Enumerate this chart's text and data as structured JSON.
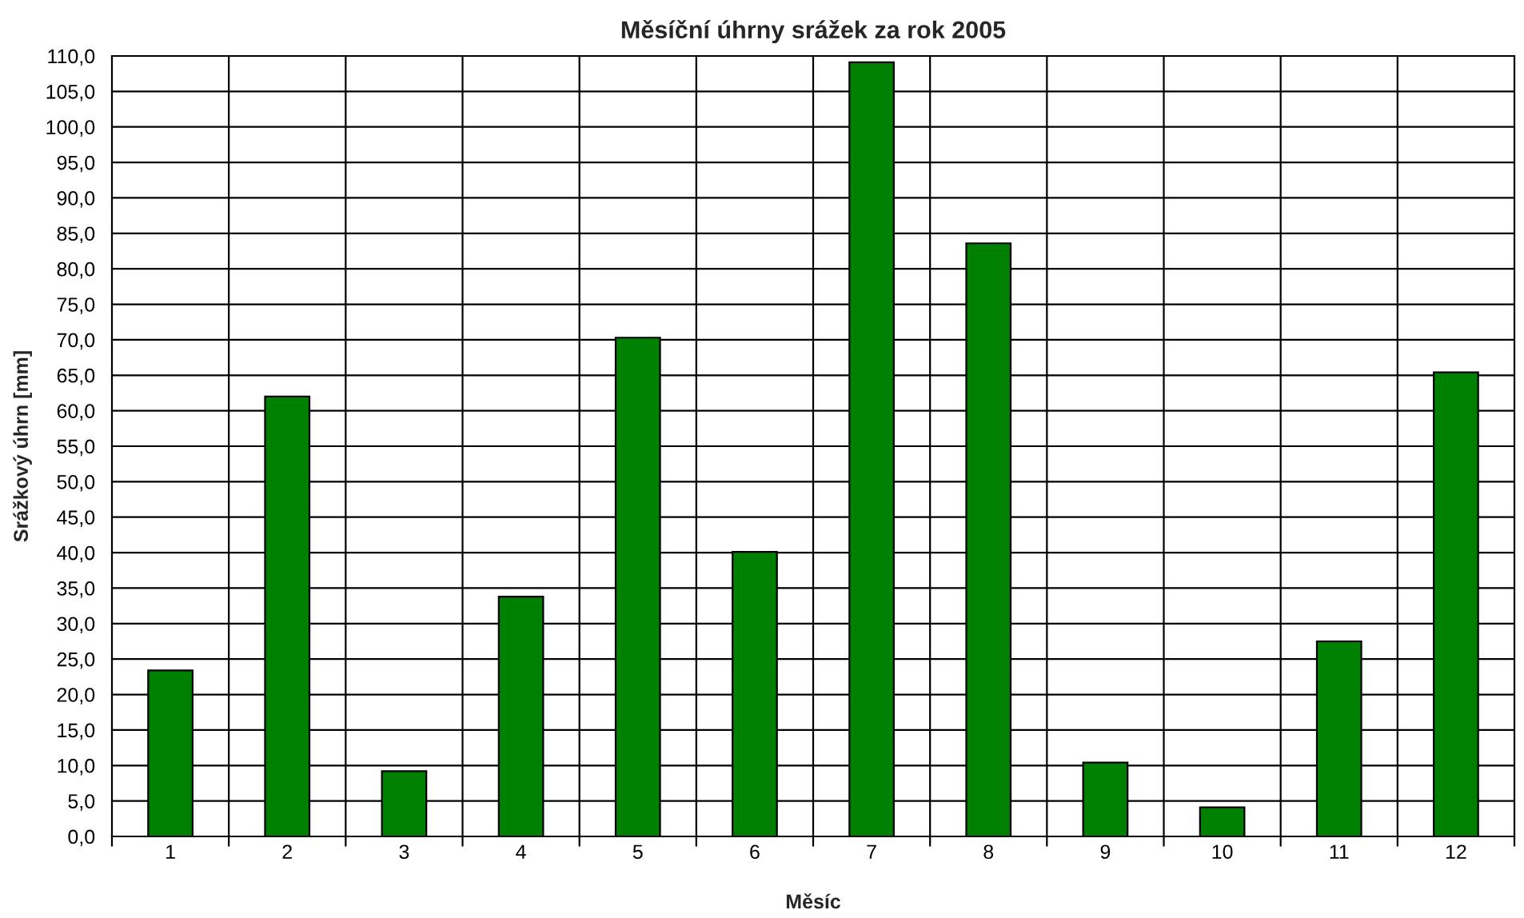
{
  "chart_data": {
    "type": "bar",
    "title": "Měsíční úhrny srážek za rok 2005",
    "xlabel": "Měsíc",
    "ylabel": "Srážkový úhrn [mm]",
    "categories": [
      "1",
      "2",
      "3",
      "4",
      "5",
      "6",
      "7",
      "8",
      "9",
      "10",
      "11",
      "12"
    ],
    "values": [
      23.4,
      62.0,
      9.2,
      33.8,
      70.3,
      40.1,
      109.1,
      83.6,
      10.4,
      4.1,
      27.5,
      65.4
    ],
    "color": "#008000",
    "ylim": [
      0,
      110
    ],
    "yticks": [
      {
        "value": 0,
        "label": "0,0"
      },
      {
        "value": 5,
        "label": "5,0"
      },
      {
        "value": 10,
        "label": "10,0"
      },
      {
        "value": 15,
        "label": "15,0"
      },
      {
        "value": 20,
        "label": "20,0"
      },
      {
        "value": 25,
        "label": "25,0"
      },
      {
        "value": 30,
        "label": "30,0"
      },
      {
        "value": 35,
        "label": "35,0"
      },
      {
        "value": 40,
        "label": "40,0"
      },
      {
        "value": 45,
        "label": "45,0"
      },
      {
        "value": 50,
        "label": "50,0"
      },
      {
        "value": 55,
        "label": "55,0"
      },
      {
        "value": 60,
        "label": "60,0"
      },
      {
        "value": 65,
        "label": "65,0"
      },
      {
        "value": 70,
        "label": "70,0"
      },
      {
        "value": 75,
        "label": "75,0"
      },
      {
        "value": 80,
        "label": "80,0"
      },
      {
        "value": 85,
        "label": "85,0"
      },
      {
        "value": 90,
        "label": "90,0"
      },
      {
        "value": 95,
        "label": "95,0"
      },
      {
        "value": 100,
        "label": "100,0"
      },
      {
        "value": 105,
        "label": "105,0"
      },
      {
        "value": 110,
        "label": "110,0"
      }
    ],
    "grid": true,
    "legend": false
  }
}
